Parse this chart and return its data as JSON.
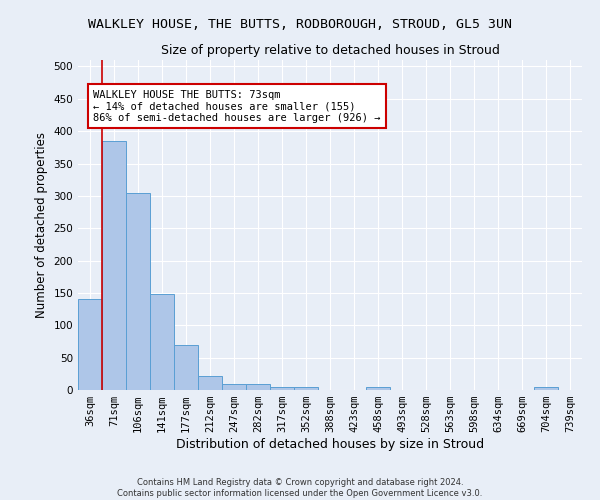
{
  "title": "WALKLEY HOUSE, THE BUTTS, RODBOROUGH, STROUD, GL5 3UN",
  "subtitle": "Size of property relative to detached houses in Stroud",
  "xlabel": "Distribution of detached houses by size in Stroud",
  "ylabel": "Number of detached properties",
  "footer1": "Contains HM Land Registry data © Crown copyright and database right 2024.",
  "footer2": "Contains public sector information licensed under the Open Government Licence v3.0.",
  "bin_labels": [
    "36sqm",
    "71sqm",
    "106sqm",
    "141sqm",
    "177sqm",
    "212sqm",
    "247sqm",
    "282sqm",
    "317sqm",
    "352sqm",
    "388sqm",
    "423sqm",
    "458sqm",
    "493sqm",
    "528sqm",
    "563sqm",
    "598sqm",
    "634sqm",
    "669sqm",
    "704sqm",
    "739sqm"
  ],
  "bar_values": [
    140,
    385,
    305,
    148,
    70,
    22,
    10,
    9,
    5,
    5,
    0,
    0,
    5,
    0,
    0,
    0,
    0,
    0,
    0,
    5,
    0
  ],
  "bar_color": "#aec6e8",
  "bar_edge_color": "#5a9fd4",
  "property_line_x": 0.5,
  "property_line_color": "#cc0000",
  "annotation_text": "WALKLEY HOUSE THE BUTTS: 73sqm\n← 14% of detached houses are smaller (155)\n86% of semi-detached houses are larger (926) →",
  "annotation_box_color": "#ffffff",
  "annotation_box_edge_color": "#cc0000",
  "ylim": [
    0,
    510
  ],
  "yticks": [
    0,
    50,
    100,
    150,
    200,
    250,
    300,
    350,
    400,
    450,
    500
  ],
  "background_color": "#e8eef7",
  "plot_background_color": "#e8eef7",
  "grid_color": "#ffffff",
  "title_fontsize": 9.5,
  "subtitle_fontsize": 9,
  "xlabel_fontsize": 9,
  "ylabel_fontsize": 8.5,
  "tick_fontsize": 7.5,
  "annotation_fontsize": 7.5,
  "footer_fontsize": 6
}
